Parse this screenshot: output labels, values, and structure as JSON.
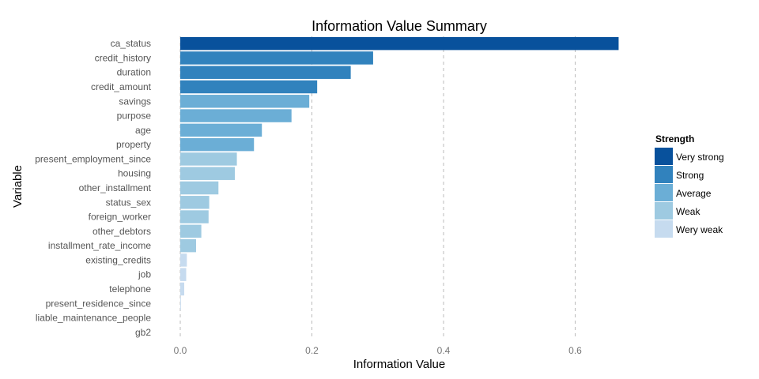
{
  "chart_data": {
    "type": "bar",
    "orientation": "horizontal",
    "title": "Information Value Summary",
    "xlabel": "Information Value",
    "ylabel": "Variable",
    "xlim": [
      0,
      0.7
    ],
    "xticks": [
      0.0,
      0.2,
      0.4,
      0.6
    ],
    "xtick_labels": [
      "0.0",
      "0.2",
      "0.4",
      "0.6"
    ],
    "grid": "vertical-dashed",
    "legend_placement": "right",
    "legend_title": "Strength",
    "legend": [
      {
        "label": "Very strong",
        "color": "#08519c"
      },
      {
        "label": "Strong",
        "color": "#3182bd"
      },
      {
        "label": "Average",
        "color": "#6baed6"
      },
      {
        "label": "Weak",
        "color": "#9ecae1"
      },
      {
        "label": "Wery weak",
        "color": "#c6dbef"
      }
    ],
    "categories": [
      "ca_status",
      "credit_history",
      "duration",
      "credit_amount",
      "savings",
      "purpose",
      "age",
      "property",
      "present_employment_since",
      "housing",
      "other_installment",
      "status_sex",
      "foreign_worker",
      "other_debtors",
      "installment_rate_income",
      "existing_credits",
      "job",
      "telephone",
      "present_residence_since",
      "liable_maintenance_people",
      "gb2"
    ],
    "values": [
      0.666,
      0.293,
      0.259,
      0.208,
      0.196,
      0.169,
      0.124,
      0.112,
      0.086,
      0.083,
      0.058,
      0.044,
      0.043,
      0.032,
      0.024,
      0.01,
      0.009,
      0.006,
      0.001,
      0.0,
      0.0
    ],
    "strength": [
      "Very strong",
      "Strong",
      "Strong",
      "Strong",
      "Average",
      "Average",
      "Average",
      "Average",
      "Weak",
      "Weak",
      "Weak",
      "Weak",
      "Weak",
      "Weak",
      "Weak",
      "Wery weak",
      "Wery weak",
      "Wery weak",
      "Wery weak",
      "Wery weak",
      "Wery weak"
    ]
  }
}
